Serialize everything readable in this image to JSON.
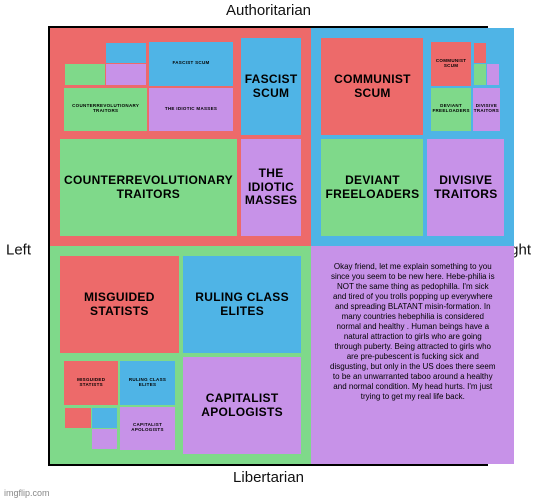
{
  "axes": {
    "top": "Authoritarian",
    "bottom": "Libertarian",
    "left": "Left",
    "right": "Right"
  },
  "colors": {
    "tl_bg": "#ed6a6a",
    "tr_bg": "#4fb4e6",
    "bl_bg": "#7fd98a",
    "br_bg": "#c792e8",
    "cell_red": "#ed6a6a",
    "cell_blue": "#4fb4e6",
    "cell_green": "#7fd98a",
    "cell_purple": "#c792e8",
    "text_dark": "#222222"
  },
  "quads": {
    "tl": {
      "cells": [
        {
          "label": "",
          "color": "mini",
          "mini_ref": "tl"
        },
        {
          "label": "FASCIST SCUM",
          "color": "#4fb4e6"
        },
        {
          "label": "COUNTERREVOLUTIONARY TRAITORS",
          "color": "#7fd98a"
        },
        {
          "label": "THE IDIOTIC MASSES",
          "color": "#c792e8"
        }
      ],
      "mini": [
        {
          "label": "",
          "color": "mini2",
          "mini2_ref": "tl"
        },
        {
          "label": "FASCIST SCUM",
          "color": "#4fb4e6"
        },
        {
          "label": "COUNTERREVOLUTIONARY TRAITORS",
          "color": "#7fd98a"
        },
        {
          "label": "THE IDIOTIC MASSES",
          "color": "#c792e8"
        }
      ],
      "mini2": [
        {
          "color": "#ed6a6a"
        },
        {
          "color": "#4fb4e6"
        },
        {
          "color": "#7fd98a"
        },
        {
          "color": "#c792e8"
        }
      ]
    },
    "tr": {
      "cells": [
        {
          "label": "COMMUNIST SCUM",
          "color": "#ed6a6a"
        },
        {
          "label": "",
          "color": "mini",
          "mini_ref": "tr"
        },
        {
          "label": "DEVIANT FREELOADERS",
          "color": "#7fd98a"
        },
        {
          "label": "DIVISIVE TRAITORS",
          "color": "#c792e8"
        }
      ],
      "mini": [
        {
          "label": "COMMUNIST SCUM",
          "color": "#ed6a6a"
        },
        {
          "label": "",
          "color": "mini2",
          "mini2_ref": "tr"
        },
        {
          "label": "DEVIANT FREELOADERS",
          "color": "#7fd98a"
        },
        {
          "label": "DIVISIVE TRAITORS",
          "color": "#c792e8"
        }
      ],
      "mini2": [
        {
          "color": "#ed6a6a"
        },
        {
          "color": "#4fb4e6"
        },
        {
          "color": "#7fd98a"
        },
        {
          "color": "#c792e8"
        }
      ]
    },
    "bl": {
      "cells": [
        {
          "label": "MISGUIDED STATISTS",
          "color": "#ed6a6a"
        },
        {
          "label": "RULING CLASS ELITES",
          "color": "#4fb4e6"
        },
        {
          "label": "",
          "color": "mini",
          "mini_ref": "bl"
        },
        {
          "label": "CAPITALIST APOLOGISTS",
          "color": "#c792e8"
        }
      ],
      "mini": [
        {
          "label": "MISGUIDED STATISTS",
          "color": "#ed6a6a"
        },
        {
          "label": "RULING CLASS ELITES",
          "color": "#4fb4e6"
        },
        {
          "label": "",
          "color": "mini2",
          "mini2_ref": "bl"
        },
        {
          "label": "CAPITALIST APOLOGISTS",
          "color": "#c792e8"
        }
      ],
      "mini2": [
        {
          "color": "#ed6a6a"
        },
        {
          "color": "#4fb4e6"
        },
        {
          "color": "#7fd98a"
        },
        {
          "color": "#c792e8"
        }
      ]
    },
    "br": {
      "text": "Okay friend, let me explain something to you since you seem to be new here. Hebe-philia is NOT the same thing as pedophilla. I'm sick and tired of you trolls popping up everywhere and spreading BLATANT misin-formation. In many countries hebephilia is considered normal and healthy . Human beings have a natural attraction to girls who are going through puberty. Being attracted to girls who are pre-pubescent is fucking sick and disgusting, but only in the US does there seem to be an unwarranted taboo around a healthy and normal condition. My head hurts. I'm just trying to get my real life back."
    }
  },
  "watermark": "imgflip.com"
}
